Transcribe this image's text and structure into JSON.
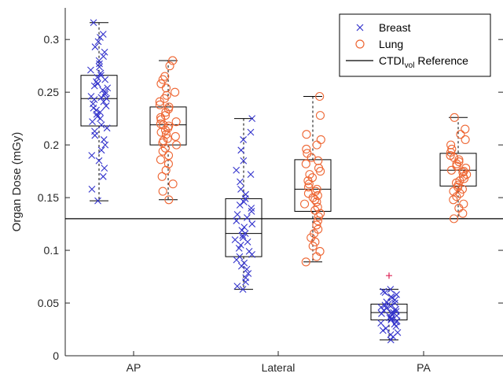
{
  "colors": {
    "breast": "#3333cc",
    "lung": "#ee6633",
    "reference": "#000000",
    "box": "#000000",
    "outlier": "#dd2255"
  },
  "chart_data": {
    "type": "box",
    "title": "",
    "xlabel": "",
    "ylabel": "Organ Dose (mGy)",
    "ylim": [
      0,
      0.33
    ],
    "yticks": [
      0,
      0.05,
      0.1,
      0.15,
      0.2,
      0.25,
      0.3
    ],
    "ytick_labels": [
      "0",
      "0.05",
      "0.1",
      "0.15",
      "0.2",
      "0.25",
      "0.3"
    ],
    "categories": [
      "AP",
      "Lateral",
      "PA"
    ],
    "legend": {
      "position": "top-right",
      "entries": [
        {
          "label": "Breast",
          "marker": "x-icon"
        },
        {
          "label": "Lung",
          "marker": "circle-icon"
        },
        {
          "label_main": "CTDI",
          "label_sub": "vol",
          "label_tail": " Reference",
          "marker": "line-icon"
        }
      ]
    },
    "reference_line": {
      "name": "CTDIvol Reference",
      "value": 0.13
    },
    "series": [
      {
        "name": "Breast",
        "marker": "x",
        "boxes": [
          {
            "category": "AP",
            "min": 0.147,
            "q1": 0.218,
            "median": 0.244,
            "q3": 0.266,
            "max": 0.316,
            "outliers": []
          },
          {
            "category": "Lateral",
            "min": 0.063,
            "q1": 0.094,
            "median": 0.116,
            "q3": 0.149,
            "max": 0.225,
            "outliers": []
          },
          {
            "category": "PA",
            "min": 0.015,
            "q1": 0.034,
            "median": 0.041,
            "q3": 0.049,
            "max": 0.063,
            "outliers": [
              0.076
            ]
          }
        ],
        "points": {
          "AP": [
            0.316,
            0.305,
            0.302,
            0.298,
            0.293,
            0.288,
            0.284,
            0.28,
            0.277,
            0.274,
            0.271,
            0.268,
            0.266,
            0.264,
            0.262,
            0.26,
            0.258,
            0.256,
            0.254,
            0.252,
            0.25,
            0.248,
            0.246,
            0.245,
            0.244,
            0.243,
            0.241,
            0.239,
            0.237,
            0.235,
            0.233,
            0.231,
            0.229,
            0.227,
            0.225,
            0.222,
            0.219,
            0.216,
            0.213,
            0.209,
            0.205,
            0.2,
            0.195,
            0.19,
            0.185,
            0.178,
            0.17,
            0.158,
            0.147
          ],
          "Lateral": [
            0.225,
            0.212,
            0.205,
            0.195,
            0.185,
            0.176,
            0.172,
            0.165,
            0.158,
            0.153,
            0.149,
            0.146,
            0.143,
            0.14,
            0.137,
            0.134,
            0.131,
            0.128,
            0.125,
            0.122,
            0.119,
            0.116,
            0.114,
            0.112,
            0.11,
            0.108,
            0.105,
            0.102,
            0.099,
            0.096,
            0.094,
            0.091,
            0.088,
            0.085,
            0.082,
            0.078,
            0.074,
            0.07,
            0.066,
            0.063
          ],
          "PA": [
            0.063,
            0.061,
            0.06,
            0.058,
            0.056,
            0.055,
            0.053,
            0.051,
            0.05,
            0.049,
            0.048,
            0.047,
            0.046,
            0.045,
            0.044,
            0.043,
            0.042,
            0.041,
            0.041,
            0.04,
            0.039,
            0.038,
            0.037,
            0.036,
            0.035,
            0.034,
            0.033,
            0.032,
            0.031,
            0.03,
            0.028,
            0.026,
            0.024,
            0.022,
            0.02,
            0.018,
            0.015
          ]
        }
      },
      {
        "name": "Lung",
        "marker": "circle",
        "boxes": [
          {
            "category": "AP",
            "min": 0.148,
            "q1": 0.2,
            "median": 0.219,
            "q3": 0.236,
            "max": 0.28,
            "outliers": []
          },
          {
            "category": "Lateral",
            "min": 0.089,
            "q1": 0.137,
            "median": 0.158,
            "q3": 0.186,
            "max": 0.246,
            "outliers": []
          },
          {
            "category": "PA",
            "min": 0.13,
            "q1": 0.161,
            "median": 0.176,
            "q3": 0.192,
            "max": 0.226,
            "outliers": []
          }
        ],
        "points": {
          "AP": [
            0.28,
            0.275,
            0.265,
            0.262,
            0.258,
            0.254,
            0.25,
            0.247,
            0.244,
            0.241,
            0.238,
            0.236,
            0.234,
            0.231,
            0.228,
            0.226,
            0.224,
            0.222,
            0.22,
            0.219,
            0.218,
            0.216,
            0.214,
            0.212,
            0.21,
            0.208,
            0.206,
            0.204,
            0.202,
            0.2,
            0.197,
            0.194,
            0.19,
            0.186,
            0.182,
            0.176,
            0.17,
            0.163,
            0.156,
            0.148
          ],
          "Lateral": [
            0.246,
            0.228,
            0.21,
            0.205,
            0.2,
            0.196,
            0.192,
            0.188,
            0.185,
            0.182,
            0.178,
            0.175,
            0.172,
            0.169,
            0.166,
            0.163,
            0.16,
            0.158,
            0.156,
            0.154,
            0.152,
            0.15,
            0.148,
            0.146,
            0.144,
            0.141,
            0.138,
            0.135,
            0.132,
            0.128,
            0.124,
            0.12,
            0.116,
            0.112,
            0.108,
            0.104,
            0.099,
            0.094,
            0.089
          ],
          "PA": [
            0.226,
            0.215,
            0.21,
            0.205,
            0.2,
            0.196,
            0.193,
            0.19,
            0.188,
            0.186,
            0.184,
            0.182,
            0.18,
            0.178,
            0.176,
            0.175,
            0.174,
            0.172,
            0.17,
            0.168,
            0.166,
            0.164,
            0.162,
            0.16,
            0.158,
            0.156,
            0.154,
            0.151,
            0.148,
            0.144,
            0.14,
            0.135,
            0.13
          ]
        }
      }
    ]
  }
}
